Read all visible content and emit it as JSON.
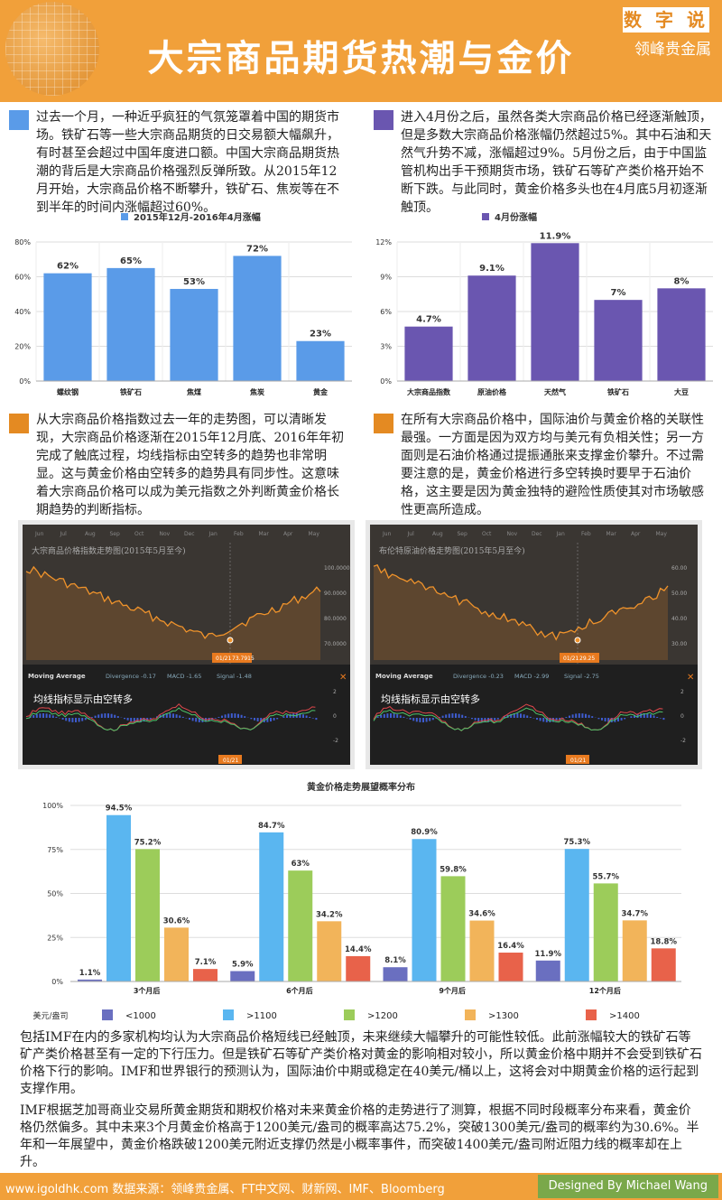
{
  "header": {
    "title": "大宗商品期货热潮与金价",
    "tag": "数 字 说",
    "brand": "领峰贵金属"
  },
  "sections": {
    "s1": "过去一个月，一种近乎疯狂的气氛笼罩着中国的期货市场。铁矿石等一些大宗商品期货的日交易额大幅飙升，有时甚至会超过中国年度进口额。中国大宗商品期货热潮的背后是大宗商品价格强烈反弹所致。从2015年12月开始，大宗商品价格不断攀升，铁矿石、焦炭等在不到半年的时间内涨幅超过60%。",
    "s2": "进入4月份之后，虽然各类大宗商品价格已经逐渐触顶，但是多数大宗商品价格涨幅仍然超过5%。其中石油和天然气升势不减，涨幅超过9%。5月份之后，由于中国监管机构出手干预期货市场，铁矿石等矿产类价格开始不断下跌。与此同时，黄金价格多头也在4月底5月初逐渐触顶。",
    "s3": "从大宗商品价格指数过去一年的走势图，可以清晰发现，大宗商品价格逐渐在2015年12月底、2016年年初完成了触底过程，均线指标由空转多的趋势也非常明显。这与黄金价格由空转多的趋势具有同步性。这意味着大宗商品价格可以成为美元指数之外判断黄金价格长期趋势的判断指标。",
    "s4": "在所有大宗商品价格中，国际油价与黄金价格的关联性最强。一方面是因为双方均与美元有负相关性；另一方面则是石油价格通过提振通胀来支撑金价攀升。不过需要注意的是，黄金价格进行多空转换时要早于石油价格，这主要是因为黄金独特的避险性质使其对市场敏感性更高所造成。",
    "p1": "包括IMF在内的多家机构均认为大宗商品价格短线已经触顶，未来继续大幅攀升的可能性较低。此前涨幅较大的铁矿石等矿产类价格甚至有一定的下行压力。但是铁矿石等矿产类价格对黄金的影响相对较小，所以黄金价格中期并不会受到铁矿石价格下行的影响。IMF和世界银行的预测认为，国际油价中期或稳定在40美元/桶以上，这将会对中期黄金价格的运行起到支撑作用。",
    "p2": "IMF根据芝加哥商业交易所黄金期货和期权价格对未来黄金价格的走势进行了测算，根据不同时段概率分布来看，黄金价格仍然偏多。其中未来3个月黄金价格高于1200美元/盎司的概率高达75.2%，突破1300美元/盎司的概率约为30.6%。半年和一年展望中，黄金价格跌破1200美元附近支撑仍然是小概率事件，而突破1400美元/盎司附近阻力线的概率却在上升。"
  },
  "stocks": [
    {
      "title": "大宗商品价格指数走势图(2015年5月至今)",
      "yticks": [
        "100.0000",
        "90.0000",
        "80.0000",
        "70.0000"
      ],
      "date_label": "01/21",
      "value_label": "73.7915",
      "ma_label": "Moving Average",
      "divergence": "Divergence  -0.17",
      "macd": "MACD  -1.65",
      "signal": "Signal  -1.48",
      "annotation": "均线指标显示由空转多",
      "macd_ticks": [
        "2",
        "0",
        "-2"
      ],
      "months": [
        "Jun",
        "Jul",
        "Aug",
        "Sep",
        "Oct",
        "Nov",
        "Dec",
        "Jan",
        "Feb",
        "Mar",
        "Apr",
        "May"
      ]
    },
    {
      "title": "布伦特原油价格走势图(2015年5月至今)",
      "yticks": [
        "60.00",
        "50.00",
        "40.00",
        "30.00"
      ],
      "date_label": "01/21",
      "value_label": "29.25",
      "ma_label": "Moving Average",
      "divergence": "Divergence  -0.23",
      "macd": "MACD  -2.99",
      "signal": "Signal  -2.75",
      "annotation": "均线指标显示由空转多",
      "macd_ticks": [
        "2",
        "0",
        "-2"
      ],
      "months": [
        "Jun",
        "Jul",
        "Aug",
        "Sep",
        "Oct",
        "Nov",
        "Dec",
        "Jan",
        "Feb",
        "Mar",
        "Apr",
        "May"
      ]
    }
  ],
  "footer": {
    "source": "www.igoldhk.com 数据来源：领峰贵金属、FT中文网、财新网、IMF、Bloomberg",
    "designer": "Designed By Michael Wang"
  },
  "colors": {
    "orange": "#f1a03a",
    "blue": "#5a9be8",
    "purple": "#6a56b0",
    "square_blue": "#5a9be8",
    "square_purple": "#6a56b0",
    "square_orange": "#e48a22"
  },
  "chart_data": [
    {
      "type": "bar",
      "title": "2015年12月-2016年4月涨幅",
      "categories": [
        "螺纹钢",
        "铁矿石",
        "焦煤",
        "焦炭",
        "黄金"
      ],
      "values": [
        62,
        65,
        53,
        72,
        23
      ],
      "value_labels": [
        "62%",
        "65%",
        "53%",
        "72%",
        "23%"
      ],
      "ylim": [
        0,
        80
      ],
      "yticks": [
        "0%",
        "20%",
        "40%",
        "60%",
        "80%"
      ],
      "color": "#5a9be8"
    },
    {
      "type": "bar",
      "title": "4月份涨幅",
      "categories": [
        "大宗商品指数",
        "原油价格",
        "天然气",
        "铁矿石",
        "大豆"
      ],
      "values": [
        4.7,
        9.1,
        11.9,
        7,
        8
      ],
      "value_labels": [
        "4.7%",
        "9.1%",
        "11.9%",
        "7%",
        "8%"
      ],
      "ylim": [
        0,
        12
      ],
      "yticks": [
        "0%",
        "3%",
        "6%",
        "9%",
        "12%"
      ],
      "color": "#6a56b0"
    },
    {
      "type": "bar",
      "title": "黄金价格走势展望概率分布",
      "ylabel": "美元/盎司",
      "categories": [
        "3个月后",
        "6个月后",
        "9个月后",
        "12个月后"
      ],
      "ylim": [
        0,
        100
      ],
      "yticks": [
        "0%",
        "25%",
        "50%",
        "75%",
        "100%"
      ],
      "series": [
        {
          "name": "<1000",
          "color": "#6a6fc0",
          "values": [
            1.1,
            5.9,
            8.1,
            11.9
          ],
          "labels": [
            "1.1%",
            "5.9%",
            "8.1%",
            "11.9%"
          ]
        },
        {
          "name": ">1100",
          "color": "#5ab6f0",
          "values": [
            94.5,
            84.7,
            80.9,
            75.3
          ],
          "labels": [
            "94.5%",
            "84.7%",
            "80.9%",
            "75.3%"
          ]
        },
        {
          "name": ">1200",
          "color": "#9ccc5a",
          "values": [
            75.2,
            63,
            59.8,
            55.7
          ],
          "labels": [
            "75.2%",
            "63%",
            "59.8%",
            "55.7%"
          ]
        },
        {
          "name": ">1300",
          "color": "#f2b45a",
          "values": [
            30.6,
            34.2,
            34.6,
            34.7
          ],
          "labels": [
            "30.6%",
            "34.2%",
            "34.6%",
            "34.7%"
          ]
        },
        {
          "name": ">1400",
          "color": "#e8624a",
          "values": [
            7.1,
            14.4,
            16.4,
            18.8
          ],
          "labels": [
            "7.1%",
            "14.4%",
            "16.4%",
            "18.8%"
          ]
        }
      ]
    }
  ]
}
